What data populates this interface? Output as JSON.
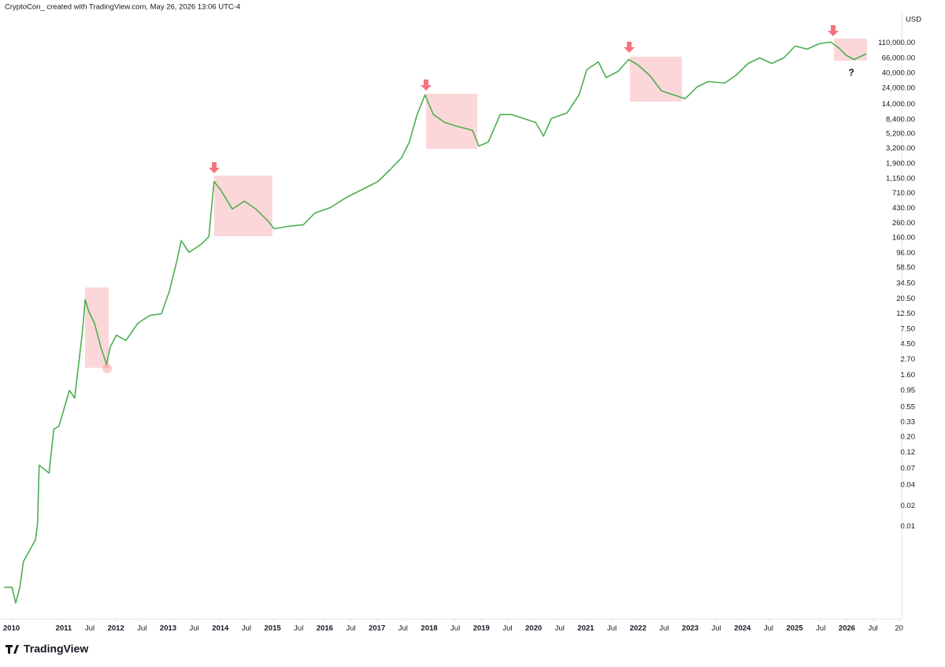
{
  "chart_data": {
    "type": "line",
    "header": "CryptoCon_ created with TradingView.com, May 26, 2026 13:06 UTC-4",
    "currency": "USD",
    "brand": "TradingView",
    "annotations": [
      "?"
    ],
    "log_scale": true,
    "grid": false,
    "xlim": [
      2009.78,
      2027.05
    ],
    "ylim": [
      0.00045,
      320000
    ],
    "xticks": [
      2010,
      2011,
      {
        "value": 2011.5,
        "label": "Jul"
      },
      2012,
      {
        "value": 2012.5,
        "label": "Jul"
      },
      2013,
      {
        "value": 2013.5,
        "label": "Jul"
      },
      2014,
      {
        "value": 2014.5,
        "label": "Jul"
      },
      2015,
      {
        "value": 2015.5,
        "label": "Jul"
      },
      2016,
      {
        "value": 2016.5,
        "label": "Jul"
      },
      2017,
      {
        "value": 2017.5,
        "label": "Jul"
      },
      2018,
      {
        "value": 2018.5,
        "label": "Jul"
      },
      2019,
      {
        "value": 2019.5,
        "label": "Jul"
      },
      2020,
      {
        "value": 2020.5,
        "label": "Jul"
      },
      2021,
      {
        "value": 2021.5,
        "label": "Jul"
      },
      2022,
      {
        "value": 2022.5,
        "label": "Jul"
      },
      2023,
      {
        "value": 2023.5,
        "label": "Jul"
      },
      2024,
      {
        "value": 2024.5,
        "label": "Jul"
      },
      2025,
      {
        "value": 2025.5,
        "label": "Jul"
      },
      2026,
      {
        "value": 2026.5,
        "label": "Jul"
      },
      {
        "value": 2027,
        "label": "20"
      }
    ],
    "yticks": [
      {
        "value": 110000,
        "label": "110,000.00"
      },
      {
        "value": 66000,
        "label": "66,000.00"
      },
      {
        "value": 40000,
        "label": "40,000.00"
      },
      {
        "value": 24000,
        "label": "24,000.00"
      },
      {
        "value": 14000,
        "label": "14,000.00"
      },
      {
        "value": 8400,
        "label": "8,400.00"
      },
      {
        "value": 5200,
        "label": "5,200.00"
      },
      {
        "value": 3200,
        "label": "3,200.00"
      },
      {
        "value": 1900,
        "label": "1,900.00"
      },
      {
        "value": 1150,
        "label": "1,150.00"
      },
      {
        "value": 710,
        "label": "710.00"
      },
      {
        "value": 430,
        "label": "430.00"
      },
      {
        "value": 260,
        "label": "260.00"
      },
      {
        "value": 160,
        "label": "160.00"
      },
      {
        "value": 96,
        "label": "96.00"
      },
      {
        "value": 58.5,
        "label": "58.50"
      },
      {
        "value": 34.5,
        "label": "34.50"
      },
      {
        "value": 20.5,
        "label": "20.50"
      },
      {
        "value": 12.5,
        "label": "12.50"
      },
      {
        "value": 7.5,
        "label": "7.50"
      },
      {
        "value": 4.5,
        "label": "4.50"
      },
      {
        "value": 2.7,
        "label": "2.70"
      },
      {
        "value": 1.6,
        "label": "1.60"
      },
      0.95,
      0.55,
      0.33,
      {
        "value": 0.2,
        "label": "0.20"
      },
      0.12,
      0.07,
      0.04,
      0.02,
      0.01
    ],
    "series": [
      {
        "color": "#4caf50",
        "x": [
          2009.86,
          2010.01,
          2010.08,
          2010.16,
          2010.23,
          2010.46,
          2010.5,
          2010.53,
          2010.72,
          2010.81,
          2010.91,
          2011.11,
          2011.21,
          2011.36,
          2011.41,
          2011.48,
          2011.59,
          2011.71,
          2011.82,
          2011.89,
          2012.01,
          2012.19,
          2012.42,
          2012.65,
          2012.87,
          2013.02,
          2013.17,
          2013.25,
          2013.4,
          2013.63,
          2013.78,
          2013.88,
          2014.0,
          2014.23,
          2014.46,
          2014.68,
          2014.91,
          2015.03,
          2015.29,
          2015.59,
          2015.81,
          2016.11,
          2016.42,
          2016.72,
          2017.02,
          2017.25,
          2017.47,
          2017.62,
          2017.77,
          2017.92,
          2018.08,
          2018.3,
          2018.53,
          2018.83,
          2018.95,
          2019.13,
          2019.36,
          2019.58,
          2019.81,
          2020.04,
          2020.19,
          2020.34,
          2020.64,
          2020.87,
          2021.02,
          2021.24,
          2021.39,
          2021.62,
          2021.82,
          2022.0,
          2022.22,
          2022.45,
          2022.68,
          2022.9,
          2023.13,
          2023.35,
          2023.66,
          2023.88,
          2024.11,
          2024.33,
          2024.56,
          2024.79,
          2025.01,
          2025.24,
          2025.47,
          2025.69,
          2025.84,
          2025.99,
          2026.14,
          2026.37
        ],
        "values": [
          0.0013,
          0.0013,
          0.00077,
          0.0013,
          0.0031,
          0.0064,
          0.011,
          0.078,
          0.06,
          0.26,
          0.29,
          0.96,
          0.74,
          7.0,
          20.1,
          13.5,
          9.1,
          4.1,
          2.3,
          4.1,
          6.1,
          5.1,
          9.1,
          11.8,
          12.5,
          26.1,
          75,
          146,
          98,
          128,
          166,
          1055,
          809,
          419,
          545,
          419,
          282,
          216,
          234,
          247,
          366,
          441,
          622,
          809,
          1055,
          1567,
          2328,
          3945,
          9954,
          19230,
          9954,
          7640,
          6700,
          5860,
          3460,
          3945,
          9954,
          9954,
          8710,
          7640,
          4820,
          8710,
          10500,
          19230,
          44800,
          58300,
          34400,
          42500,
          63100,
          52500,
          37200,
          22000,
          19230,
          16900,
          25100,
          30100,
          28600,
          37200,
          55300,
          66500,
          55300,
          66500,
          98900,
          89100,
          107000,
          113000,
          93800,
          72100,
          63100,
          76000
        ]
      }
    ]
  }
}
